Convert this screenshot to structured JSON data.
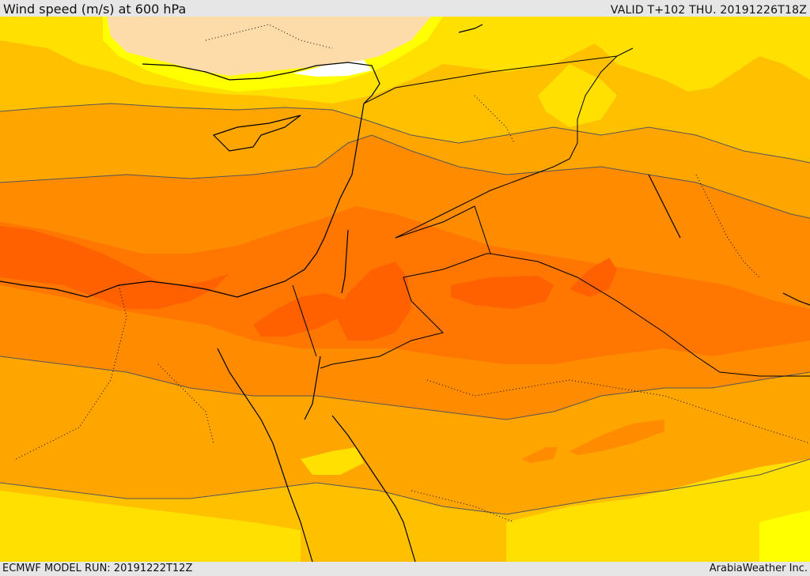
{
  "header": {
    "title": "Wind speed (m/s) at 600 hPa",
    "valid": "VALID T+102 THU. 20191226T18Z"
  },
  "footer": {
    "model_run": "ECMWF MODEL RUN: 20191222T12Z",
    "credit": "ArabiaWeather Inc."
  },
  "map": {
    "variable": "wind speed",
    "level": "600 hPa",
    "palette": {
      "very_low": "#ffffff",
      "low": "#fddcaa",
      "light": "#ffff00",
      "pale_yellow": "#ffe000",
      "gold": "#ffc000",
      "orange_light": "#ffa500",
      "orange": "#ff8c00",
      "orange_dark": "#ff7600",
      "red_orange": "#ff6000",
      "contour": "#555555",
      "coastline": "#000000"
    }
  }
}
